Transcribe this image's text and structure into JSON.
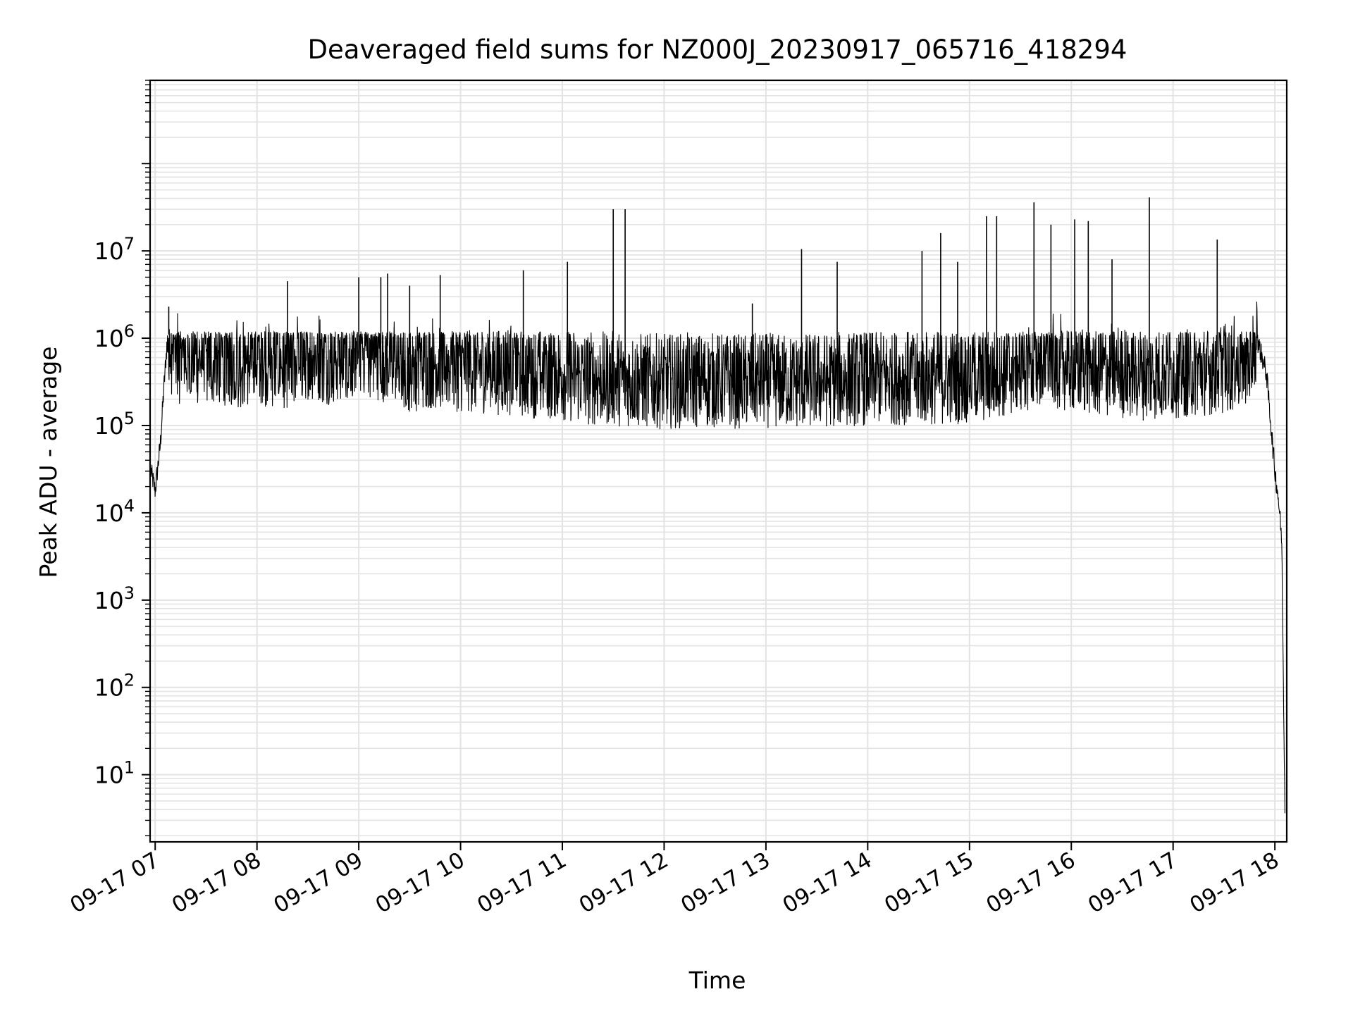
{
  "chart_data": {
    "type": "line",
    "title": "Deaveraged field sums for NZ000J_20230917_065716_418294",
    "xlabel": "Time",
    "ylabel": "Peak ADU - average",
    "yscale": "log",
    "ylim": [
      1.7,
      900000000
    ],
    "xlim": [
      "2023-09-17T06:57:00",
      "2023-09-17T18:07:00"
    ],
    "grid": true,
    "line_color": "#000000",
    "grid_color": "#e3e3e3",
    "x_ticks": [
      "09-17 07",
      "09-17 08",
      "09-17 09",
      "09-17 10",
      "09-17 11",
      "09-17 12",
      "09-17 13",
      "09-17 14",
      "09-17 15",
      "09-17 16",
      "09-17 17",
      "09-17 18"
    ],
    "y_ticks": [
      {
        "base": "10",
        "exp": "1"
      },
      {
        "base": "10",
        "exp": "2"
      },
      {
        "base": "10",
        "exp": "3"
      },
      {
        "base": "10",
        "exp": "4"
      },
      {
        "base": "10",
        "exp": "5"
      },
      {
        "base": "10",
        "exp": "6"
      },
      {
        "base": "10",
        "exp": "7"
      }
    ],
    "series": [
      {
        "x": [
          "2023-09-17T06:57:30",
          "2023-09-17T07:00:00",
          "2023-09-17T07:03:00",
          "2023-09-17T07:05:00",
          "2023-09-17T07:07:00",
          "2023-09-17T07:09:00",
          "2023-09-17T07:11:00",
          "2023-09-17T07:15:00",
          "2023-09-17T07:20:00",
          "2023-09-17T07:30:00",
          "2023-09-17T07:40:00",
          "2023-09-17T07:50:00",
          "2023-09-17T08:00:00",
          "2023-09-17T08:10:00",
          "2023-09-17T08:20:00",
          "2023-09-17T08:30:00",
          "2023-09-17T08:40:00",
          "2023-09-17T08:50:00",
          "2023-09-17T09:00:00",
          "2023-09-17T09:10:00",
          "2023-09-17T09:20:00",
          "2023-09-17T09:30:00",
          "2023-09-17T09:45:00",
          "2023-09-17T10:00:00",
          "2023-09-17T10:15:00",
          "2023-09-17T10:30:00",
          "2023-09-17T10:45:00",
          "2023-09-17T11:00:00",
          "2023-09-17T11:15:00",
          "2023-09-17T11:30:00",
          "2023-09-17T11:45:00",
          "2023-09-17T12:00:00",
          "2023-09-17T12:15:00",
          "2023-09-17T12:30:00",
          "2023-09-17T12:45:00",
          "2023-09-17T13:00:00",
          "2023-09-17T13:15:00",
          "2023-09-17T13:30:00",
          "2023-09-17T13:45:00",
          "2023-09-17T14:00:00",
          "2023-09-17T14:15:00",
          "2023-09-17T14:30:00",
          "2023-09-17T14:45:00",
          "2023-09-17T15:00:00",
          "2023-09-17T15:15:00",
          "2023-09-17T15:30:00",
          "2023-09-17T15:45:00",
          "2023-09-17T16:00:00",
          "2023-09-17T16:15:00",
          "2023-09-17T16:30:00",
          "2023-09-17T16:45:00",
          "2023-09-17T17:00:00",
          "2023-09-17T17:15:00",
          "2023-09-17T17:30:00",
          "2023-09-17T17:45:00",
          "2023-09-17T17:50:00",
          "2023-09-17T17:55:00",
          "2023-09-17T18:00:00",
          "2023-09-17T18:02:00",
          "2023-09-17T18:04:00",
          "2023-09-17T18:06:00"
        ],
        "y": [
          30000,
          18000,
          60000,
          250000,
          900000,
          800000,
          700000,
          600000,
          650000,
          550000,
          600000,
          550000,
          600000,
          550000,
          550000,
          700000,
          600000,
          650000,
          800000,
          700000,
          600000,
          500000,
          550000,
          500000,
          480000,
          450000,
          420000,
          400000,
          350000,
          350000,
          330000,
          320000,
          330000,
          330000,
          320000,
          330000,
          320000,
          330000,
          340000,
          350000,
          360000,
          350000,
          360000,
          370000,
          380000,
          500000,
          600000,
          500000,
          450000,
          420000,
          400000,
          420000,
          450000,
          480000,
          550000,
          900000,
          400000,
          30000,
          15000,
          5000,
          3
        ]
      }
    ],
    "spikes": [
      {
        "x": "2023-09-17T07:08:00",
        "y": 2300000
      },
      {
        "x": "2023-09-17T08:18:00",
        "y": 4500000
      },
      {
        "x": "2023-09-17T09:00:00",
        "y": 5000000
      },
      {
        "x": "2023-09-17T09:13:00",
        "y": 5000000
      },
      {
        "x": "2023-09-17T09:17:00",
        "y": 5500000
      },
      {
        "x": "2023-09-17T09:30:00",
        "y": 4000000
      },
      {
        "x": "2023-09-17T09:48:00",
        "y": 5300000
      },
      {
        "x": "2023-09-17T10:37:00",
        "y": 6000000
      },
      {
        "x": "2023-09-17T11:03:00",
        "y": 7500000
      },
      {
        "x": "2023-09-17T11:30:00",
        "y": 30000000
      },
      {
        "x": "2023-09-17T11:37:00",
        "y": 30000000
      },
      {
        "x": "2023-09-17T12:52:00",
        "y": 2500000
      },
      {
        "x": "2023-09-17T13:21:00",
        "y": 10500000
      },
      {
        "x": "2023-09-17T13:42:00",
        "y": 7500000
      },
      {
        "x": "2023-09-17T14:32:00",
        "y": 10000000
      },
      {
        "x": "2023-09-17T14:43:00",
        "y": 16000000
      },
      {
        "x": "2023-09-17T14:53:00",
        "y": 7500000
      },
      {
        "x": "2023-09-17T15:10:00",
        "y": 25000000
      },
      {
        "x": "2023-09-17T15:16:00",
        "y": 25000000
      },
      {
        "x": "2023-09-17T15:38:00",
        "y": 36000000
      },
      {
        "x": "2023-09-17T15:48:00",
        "y": 20000000
      },
      {
        "x": "2023-09-17T16:02:00",
        "y": 23000000
      },
      {
        "x": "2023-09-17T16:10:00",
        "y": 22000000
      },
      {
        "x": "2023-09-17T16:24:00",
        "y": 8000000
      },
      {
        "x": "2023-09-17T16:46:00",
        "y": 41000000
      },
      {
        "x": "2023-09-17T17:26:00",
        "y": 13500000
      }
    ]
  }
}
